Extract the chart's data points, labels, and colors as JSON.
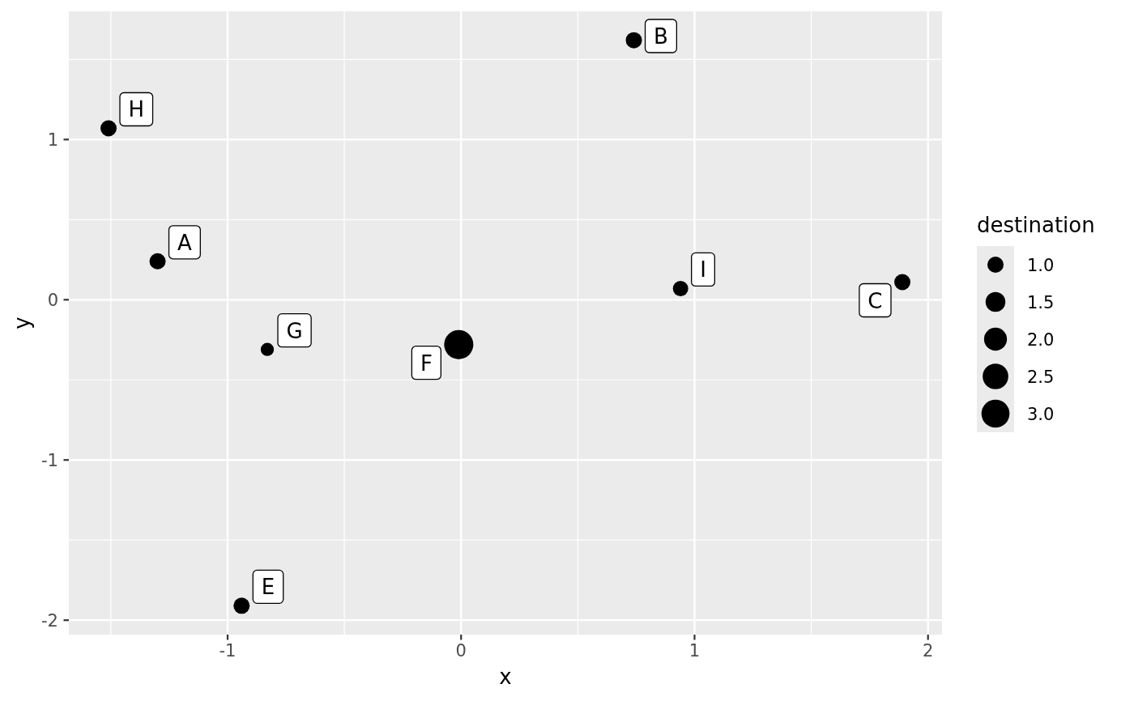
{
  "chart_data": {
    "type": "bubble",
    "xlabel": "x",
    "ylabel": "y",
    "legend_title": "destination",
    "xlim": [
      -1.68,
      2.06
    ],
    "ylim": [
      -2.09,
      1.8
    ],
    "xticks": [
      -1,
      0,
      1,
      2
    ],
    "yticks": [
      -2,
      -1,
      0,
      1
    ],
    "grid": true,
    "size_legend": [
      {
        "value": 1,
        "label": "1.0"
      },
      {
        "value": 1.5,
        "label": "1.5"
      },
      {
        "value": 2,
        "label": "2.0"
      },
      {
        "value": 2.5,
        "label": "2.5"
      },
      {
        "value": 3,
        "label": "3.0"
      }
    ],
    "series": [
      {
        "color": "#000000",
        "x": [
          -1.3,
          0.74,
          1.89,
          -0.94,
          -0.01,
          -0.83,
          -1.51,
          0.94
        ],
        "values": [
          0.24,
          1.62,
          0.11,
          -1.91,
          -0.28,
          -0.31,
          1.07,
          0.07
        ],
        "sizes": [
          1.0,
          1.0,
          1.0,
          1.0,
          3.24,
          0.66,
          1.0,
          0.9
        ]
      }
    ],
    "annotations": [
      {
        "text": "A",
        "x": -1.3,
        "y": 0.24
      },
      {
        "text": "B",
        "x": 0.74,
        "y": 1.62
      },
      {
        "text": "C",
        "x": 1.89,
        "y": 0.11
      },
      {
        "text": "E",
        "x": -0.94,
        "y": -1.91
      },
      {
        "text": "F",
        "x": -0.01,
        "y": -0.28
      },
      {
        "text": "G",
        "x": -0.83,
        "y": -0.31
      },
      {
        "text": "H",
        "x": -1.51,
        "y": 1.07
      },
      {
        "text": "I",
        "x": 0.94,
        "y": 0.07
      }
    ]
  }
}
